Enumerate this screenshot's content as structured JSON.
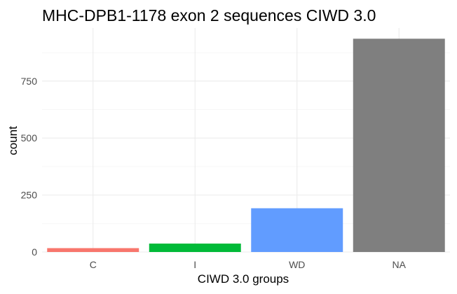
{
  "chart_data": {
    "type": "bar",
    "title": "MHC-DPB1-1178 exon 2 sequences CIWD 3.0",
    "xlabel": "CIWD 3.0 groups",
    "ylabel": "count",
    "categories": [
      "C",
      "I",
      "WD",
      "NA"
    ],
    "values": [
      17,
      37,
      192,
      936
    ],
    "colors": [
      "#F8766D",
      "#00BA38",
      "#619CFF",
      "#7F7F7F"
    ],
    "yticks": [
      0,
      250,
      500,
      750
    ],
    "ylim": [
      0,
      983
    ],
    "grid": true,
    "legend": "none"
  }
}
